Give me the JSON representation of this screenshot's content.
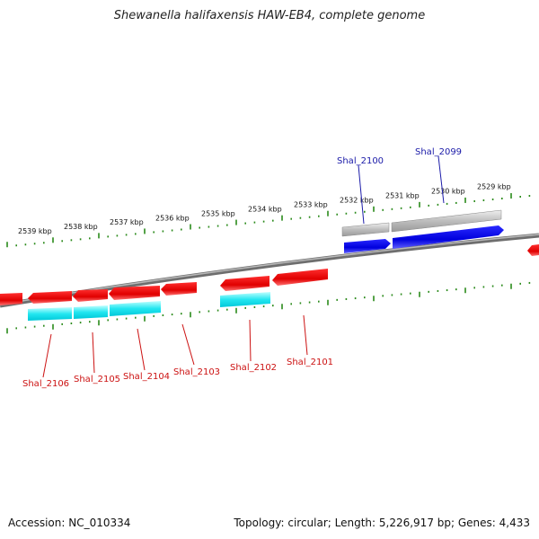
{
  "title": "Shewanella halifaxensis HAW-EB4, complete genome",
  "footer": {
    "accession": "Accession: NC_010334",
    "summary": "Topology: circular; Length: 5,226,917 bp; Genes: 4,433"
  },
  "ticks": [
    "2539 kbp",
    "2538 kbp",
    "2537 kbp",
    "2536 kbp",
    "2535 kbp",
    "2534 kbp",
    "2533 kbp",
    "2532 kbp",
    "2531 kbp",
    "2530 kbp",
    "2529 kbp"
  ],
  "genes_top": [
    {
      "label": "Shal_2100",
      "color": "#1a1aa8"
    },
    {
      "label": "Shal_2099",
      "color": "#1a1aa8"
    }
  ],
  "genes_bottom": [
    {
      "label": "Shal_2106",
      "color": "#cc1111"
    },
    {
      "label": "Shal_2105",
      "color": "#cc1111"
    },
    {
      "label": "Shal_2104",
      "color": "#cc1111"
    },
    {
      "label": "Shal_2103",
      "color": "#cc1111"
    },
    {
      "label": "Shal_2102",
      "color": "#cc1111"
    },
    {
      "label": "Shal_2101",
      "color": "#cc1111"
    }
  ]
}
